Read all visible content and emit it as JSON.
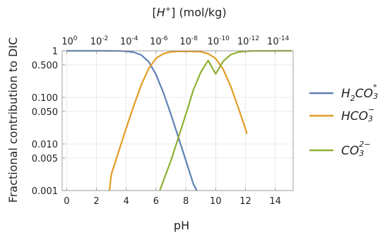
{
  "chart_data": {
    "type": "line",
    "xlabel": "pH",
    "ylabel": "Fractional contribution to DIC",
    "top_axis_label": {
      "prefix": "[",
      "species": "H",
      "charge": "+",
      "suffix": "] (mol/kg)"
    },
    "xlim": [
      -0.3,
      15.2
    ],
    "ylim": [
      0.001,
      1
    ],
    "y_scale": "log",
    "grid": true,
    "x_ticks": [
      0,
      2,
      4,
      6,
      8,
      10,
      12,
      14
    ],
    "x_tick_labels": [
      "0",
      "2",
      "4",
      "6",
      "8",
      "10",
      "12",
      "14"
    ],
    "y_ticks": [
      0.001,
      0.005,
      0.01,
      0.05,
      0.1,
      0.5,
      1
    ],
    "y_tick_labels": [
      "0.001",
      "0.005",
      "0.010",
      "0.050",
      "0.100",
      "0.500",
      "1"
    ],
    "top_ticks": [
      {
        "base": "10",
        "exp": "0",
        "ph": 0
      },
      {
        "base": "10",
        "exp": "-2",
        "ph": 2
      },
      {
        "base": "10",
        "exp": "-4",
        "ph": 4
      },
      {
        "base": "10",
        "exp": "-6",
        "ph": 6
      },
      {
        "base": "10",
        "exp": "-8",
        "ph": 8
      },
      {
        "base": "10",
        "exp": "-10",
        "ph": 10
      },
      {
        "base": "10",
        "exp": "-12",
        "ph": 12
      },
      {
        "base": "10",
        "exp": "-14",
        "ph": 14
      }
    ],
    "pK1": 6.35,
    "pK2": 10.33,
    "legend_position": "right",
    "series": [
      {
        "key": "h2co3",
        "name": "H2CO3*",
        "label_main": "H",
        "label_sub1": "2",
        "label_mid": "CO",
        "label_sub2": "3",
        "label_sup": "*",
        "color": "#5e81b5",
        "ph": [
          0,
          0.5,
          1,
          1.5,
          2,
          2.5,
          3,
          3.5,
          4,
          4.5,
          5,
          5.5,
          6,
          6.5,
          7,
          7.5,
          8,
          8.5,
          8.75
        ],
        "values": [
          1.0,
          1.0,
          1.0,
          1.0,
          1.0,
          0.999,
          0.998,
          0.993,
          0.978,
          0.934,
          0.817,
          0.586,
          0.309,
          0.124,
          0.043,
          0.0138,
          0.0044,
          0.00139,
          0.00078
        ]
      },
      {
        "key": "hco3",
        "name": "HCO3-",
        "label_main": "HCO",
        "label_sub1": "3",
        "label_sup": "−",
        "color": "#e19c24",
        "ph": [
          2.87,
          3,
          3.5,
          4,
          4.5,
          5,
          5.5,
          6,
          6.5,
          7,
          7.5,
          8,
          8.5,
          9,
          9.5,
          10,
          10.5,
          11,
          11.5,
          12,
          12.1
        ],
        "values": [
          0.001,
          0.00223,
          0.00706,
          0.0219,
          0.066,
          0.183,
          0.414,
          0.691,
          0.874,
          0.95,
          0.972,
          0.974,
          0.965,
          0.955,
          0.87,
          0.681,
          0.405,
          0.176,
          0.063,
          0.0209,
          0.0166
        ]
      },
      {
        "key": "co3",
        "name": "CO3 2-",
        "label_main": "CO",
        "label_sub1": "3",
        "label_sup": "2−",
        "color": "#8fb032",
        "ph": [
          6.25,
          6.5,
          7,
          7.5,
          8,
          8.5,
          9,
          9.5,
          10,
          10.5,
          11,
          11.5,
          12,
          12.5,
          13,
          14,
          15.1
        ],
        "values": [
          0.001,
          0.00165,
          0.0044,
          0.0138,
          0.0433,
          0.144,
          0.347,
          0.62,
          0.319,
          0.595,
          0.824,
          0.937,
          0.979,
          0.993,
          0.998,
          1.0,
          1.0
        ]
      }
    ]
  }
}
